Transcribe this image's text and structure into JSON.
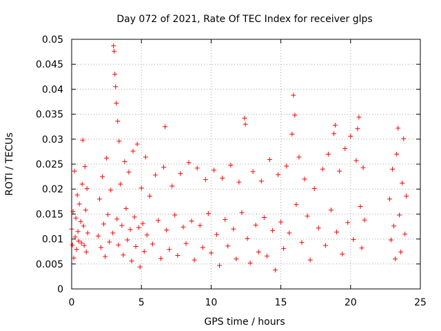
{
  "chart_data": {
    "type": "scatter",
    "title": "Day 072 of 2021, Rate Of TEC Index for receiver glps",
    "xlabel": "GPS time / hours",
    "ylabel": "ROTI / TECUs",
    "xlim": [
      0,
      25
    ],
    "ylim": [
      0,
      0.05
    ],
    "x_ticks": [
      0,
      5,
      10,
      15,
      20,
      25
    ],
    "x_tick_labels": [
      "0",
      "5",
      "10",
      "15",
      "20",
      "25"
    ],
    "y_ticks": [
      0,
      0.005,
      0.01,
      0.015,
      0.02,
      0.025,
      0.03,
      0.035,
      0.04,
      0.045,
      0.05
    ],
    "y_tick_labels": [
      "0",
      "0.005",
      "0.01",
      "0.015",
      "0.02",
      "0.025",
      "0.03",
      "0.035",
      "0.04",
      "0.045",
      "0.05"
    ],
    "grid": true,
    "marker": "+",
    "color": "#ff0000",
    "series": [
      {
        "values": [
          [
            0.0,
            0.012
          ],
          [
            0.05,
            0.0088
          ],
          [
            0.1,
            0.0155
          ],
          [
            0.15,
            0.0062
          ],
          [
            0.2,
            0.0236
          ],
          [
            0.25,
            0.0104
          ],
          [
            0.3,
            0.0142
          ],
          [
            0.35,
            0.0079
          ],
          [
            0.4,
            0.0188
          ],
          [
            0.45,
            0.0115
          ],
          [
            0.5,
            0.0096
          ],
          [
            0.55,
            0.017
          ],
          [
            0.65,
            0.0135
          ],
          [
            0.7,
            0.0092
          ],
          [
            0.75,
            0.021
          ],
          [
            0.8,
            0.0298
          ],
          [
            0.85,
            0.0126
          ],
          [
            0.9,
            0.0087
          ],
          [
            0.95,
            0.0245
          ],
          [
            1.0,
            0.0158
          ],
          [
            1.05,
            0.0074
          ],
          [
            1.1,
            0.0201
          ],
          [
            1.15,
            0.0112
          ],
          [
            1.9,
            0.0106
          ],
          [
            2.0,
            0.018
          ],
          [
            2.1,
            0.0083
          ],
          [
            2.2,
            0.0225
          ],
          [
            2.3,
            0.013
          ],
          [
            2.4,
            0.0065
          ],
          [
            2.5,
            0.0262
          ],
          [
            2.6,
            0.0149
          ],
          [
            2.7,
            0.0094
          ],
          [
            2.8,
            0.0198
          ],
          [
            2.95,
            0.0112
          ],
          [
            3.0,
            0.0487
          ],
          [
            3.05,
            0.0476
          ],
          [
            3.1,
            0.043
          ],
          [
            3.15,
            0.0405
          ],
          [
            3.2,
            0.0372
          ],
          [
            3.25,
            0.014
          ],
          [
            3.3,
            0.0336
          ],
          [
            3.35,
            0.0088
          ],
          [
            3.4,
            0.0296
          ],
          [
            3.5,
            0.021
          ],
          [
            3.6,
            0.0127
          ],
          [
            3.7,
            0.0068
          ],
          [
            3.8,
            0.0255
          ],
          [
            3.9,
            0.0161
          ],
          [
            4.0,
            0.0098
          ],
          [
            4.1,
            0.0234
          ],
          [
            4.2,
            0.0119
          ],
          [
            4.3,
            0.0056
          ],
          [
            4.4,
            0.0276
          ],
          [
            4.5,
            0.0144
          ],
          [
            4.6,
            0.0085
          ],
          [
            4.7,
            0.029
          ],
          [
            4.8,
            0.0123
          ],
          [
            4.9,
            0.0044
          ],
          [
            5.0,
            0.0202
          ],
          [
            5.1,
            0.0131
          ],
          [
            5.2,
            0.0075
          ],
          [
            5.3,
            0.0264
          ],
          [
            5.4,
            0.0108
          ],
          [
            5.6,
            0.0186
          ],
          [
            5.8,
            0.009
          ],
          [
            6.0,
            0.0228
          ],
          [
            6.2,
            0.0137
          ],
          [
            6.4,
            0.0061
          ],
          [
            6.6,
            0.0244
          ],
          [
            6.7,
            0.0325
          ],
          [
            6.8,
            0.0118
          ],
          [
            7.0,
            0.0079
          ],
          [
            7.2,
            0.0206
          ],
          [
            7.4,
            0.0148
          ],
          [
            7.6,
            0.0067
          ],
          [
            7.8,
            0.0231
          ],
          [
            8.0,
            0.0124
          ],
          [
            8.2,
            0.0091
          ],
          [
            8.4,
            0.0253
          ],
          [
            8.6,
            0.0136
          ],
          [
            8.8,
            0.0058
          ],
          [
            9.0,
            0.0242
          ],
          [
            9.2,
            0.0127
          ],
          [
            9.4,
            0.0083
          ],
          [
            9.6,
            0.0219
          ],
          [
            9.8,
            0.0151
          ],
          [
            10.0,
            0.0072
          ],
          [
            10.2,
            0.0238
          ],
          [
            10.4,
            0.0109
          ],
          [
            10.6,
            0.0047
          ],
          [
            10.8,
            0.0222
          ],
          [
            11.0,
            0.0139
          ],
          [
            11.2,
            0.0086
          ],
          [
            11.4,
            0.0248
          ],
          [
            11.6,
            0.012
          ],
          [
            11.8,
            0.006
          ],
          [
            12.0,
            0.0214
          ],
          [
            12.2,
            0.0153
          ],
          [
            12.4,
            0.0342
          ],
          [
            12.45,
            0.033
          ],
          [
            12.6,
            0.0101
          ],
          [
            12.8,
            0.0052
          ],
          [
            13.0,
            0.0235
          ],
          [
            13.2,
            0.0128
          ],
          [
            13.4,
            0.0074
          ],
          [
            13.6,
            0.0216
          ],
          [
            13.8,
            0.0143
          ],
          [
            14.0,
            0.0066
          ],
          [
            14.2,
            0.0259
          ],
          [
            14.4,
            0.0117
          ],
          [
            14.6,
            0.0038
          ],
          [
            14.8,
            0.0229
          ],
          [
            15.0,
            0.0134
          ],
          [
            15.2,
            0.0081
          ],
          [
            15.4,
            0.0246
          ],
          [
            15.6,
            0.0112
          ],
          [
            15.8,
            0.031
          ],
          [
            15.9,
            0.0388
          ],
          [
            16.0,
            0.0348
          ],
          [
            16.1,
            0.0169
          ],
          [
            16.3,
            0.0264
          ],
          [
            16.5,
            0.0093
          ],
          [
            16.7,
            0.022
          ],
          [
            16.9,
            0.0146
          ],
          [
            17.1,
            0.0058
          ],
          [
            17.4,
            0.0201
          ],
          [
            17.7,
            0.0122
          ],
          [
            18.0,
            0.024
          ],
          [
            18.2,
            0.0087
          ],
          [
            18.4,
            0.027
          ],
          [
            18.6,
            0.0158
          ],
          [
            18.8,
            0.0311
          ],
          [
            18.9,
            0.0328
          ],
          [
            19.0,
            0.0114
          ],
          [
            19.2,
            0.0236
          ],
          [
            19.4,
            0.007
          ],
          [
            19.6,
            0.0281
          ],
          [
            19.8,
            0.0133
          ],
          [
            20.0,
            0.0306
          ],
          [
            20.2,
            0.0099
          ],
          [
            20.4,
            0.0257
          ],
          [
            20.5,
            0.0321
          ],
          [
            20.6,
            0.0344
          ],
          [
            20.7,
            0.0165
          ],
          [
            20.8,
            0.0082
          ],
          [
            20.9,
            0.0243
          ],
          [
            21.0,
            0.0138
          ],
          [
            22.8,
            0.018
          ],
          [
            22.9,
            0.0098
          ],
          [
            23.0,
            0.024
          ],
          [
            23.1,
            0.0126
          ],
          [
            23.2,
            0.006
          ],
          [
            23.3,
            0.027
          ],
          [
            23.4,
            0.0322
          ],
          [
            23.5,
            0.0148
          ],
          [
            23.6,
            0.0074
          ],
          [
            23.7,
            0.0212
          ],
          [
            23.8,
            0.0301
          ],
          [
            23.9,
            0.011
          ],
          [
            24.0,
            0.0186
          ]
        ]
      }
    ]
  }
}
